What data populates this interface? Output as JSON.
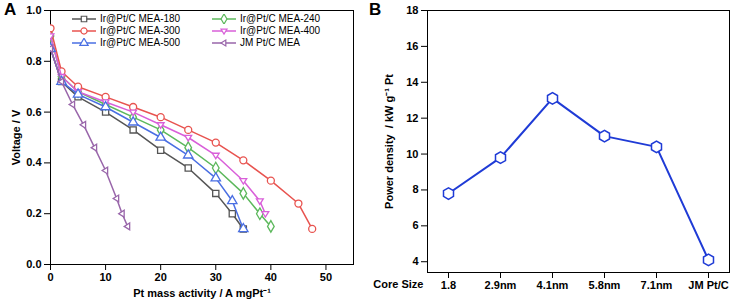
{
  "chart_data": [
    {
      "type": "line",
      "title": "A",
      "xlabel": "Pt mass activity / A mgPt⁻¹",
      "ylabel": "Voltage / V",
      "xlim": [
        0,
        55
      ],
      "xticks": [
        0,
        10,
        20,
        30,
        40,
        50
      ],
      "ylim": [
        0,
        1.0
      ],
      "yticks": [
        {
          "value": 0,
          "label": "0.0"
        },
        0.2,
        0.4,
        0.6,
        0.8,
        {
          "value": 1.0,
          "label": "1.0"
        }
      ],
      "grid": false,
      "legend": "top-left",
      "series": [
        {
          "name": "Ir@Pt/C MEA-180",
          "color": "#555555",
          "marker": "square",
          "x": [
            0,
            2,
            5,
            10,
            15,
            20,
            25,
            30,
            33,
            35
          ],
          "values": [
            0.85,
            0.72,
            0.66,
            0.6,
            0.53,
            0.45,
            0.38,
            0.28,
            0.2,
            0.14
          ]
        },
        {
          "name": "Ir@Pt/C MEA-240",
          "color": "#5cb85c",
          "marker": "diamond",
          "x": [
            0,
            2,
            5,
            10,
            15,
            20,
            25,
            30,
            35,
            38,
            40
          ],
          "values": [
            0.9,
            0.74,
            0.68,
            0.63,
            0.58,
            0.53,
            0.46,
            0.38,
            0.28,
            0.2,
            0.15
          ]
        },
        {
          "name": "Ir@Pt/C MEA-300",
          "color": "#e8534f",
          "marker": "circle",
          "x": [
            0,
            2,
            5,
            10,
            15,
            20,
            25,
            30,
            35,
            40,
            45,
            47.5
          ],
          "values": [
            0.93,
            0.76,
            0.7,
            0.66,
            0.62,
            0.58,
            0.53,
            0.48,
            0.41,
            0.33,
            0.24,
            0.14
          ]
        },
        {
          "name": "Ir@Pt/C MEA-400",
          "color": "#d95fd9",
          "marker": "triangle-down",
          "x": [
            0,
            2,
            5,
            10,
            15,
            20,
            25,
            30,
            35,
            38,
            39
          ],
          "values": [
            0.9,
            0.74,
            0.68,
            0.64,
            0.6,
            0.55,
            0.5,
            0.43,
            0.33,
            0.25,
            0.2
          ]
        },
        {
          "name": "Ir@Pt/C MEA-500",
          "color": "#4a6fe3",
          "marker": "triangle-up",
          "x": [
            0,
            2,
            5,
            10,
            15,
            20,
            25,
            30,
            33,
            35
          ],
          "values": [
            0.85,
            0.72,
            0.67,
            0.62,
            0.56,
            0.5,
            0.43,
            0.34,
            0.25,
            0.14
          ]
        },
        {
          "name": "JM Pt/C MEA",
          "color": "#9966aa",
          "marker": "triangle-left",
          "x": [
            0,
            2,
            4,
            6,
            8,
            10,
            12,
            13,
            14
          ],
          "values": [
            0.85,
            0.72,
            0.63,
            0.55,
            0.46,
            0.37,
            0.26,
            0.2,
            0.15
          ]
        }
      ]
    },
    {
      "type": "line",
      "title": "B",
      "xlabel": "Core Size",
      "ylabel": "Power density  / kW g⁻¹ Pt",
      "categories": [
        "1.8",
        "2.9nm",
        "4.1nm",
        "5.8nm",
        "7.1nm",
        "JM Pt/C"
      ],
      "values": [
        7.8,
        9.8,
        13.1,
        11.0,
        10.4,
        4.1
      ],
      "color": "#1f3bd6",
      "marker": "hexagon",
      "ylim": [
        3.4,
        18
      ],
      "yticks": [
        4,
        6,
        8,
        10,
        12,
        14,
        16,
        18
      ],
      "grid": false
    }
  ]
}
